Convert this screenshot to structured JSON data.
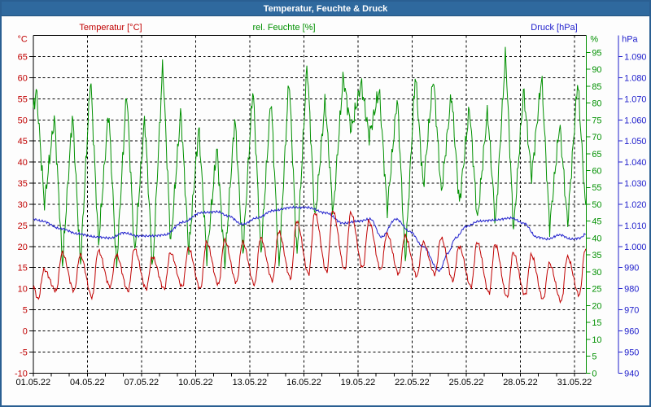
{
  "window_title": "Temperatur, Feuchte & Druck",
  "colors": {
    "titlebar_bg": "#2f699e",
    "frame_border": "#2a5f92",
    "temperature": "#c00000",
    "humidity": "#009000",
    "pressure": "#2020cc",
    "grid": "#000000",
    "axis_line": "#000000",
    "date_text": "#000000",
    "title_text": "#ffffff",
    "plot_bg": "#fdfdfd"
  },
  "chart_data": {
    "type": "line",
    "title": "Temperatur, Feuchte & Druck",
    "legend_position": "top",
    "grid": "dashed, horizontal every 5 °C, vertical every 3 days",
    "x_axis": {
      "tick_labels": [
        "01.05.22",
        "04.05.22",
        "07.05.22",
        "10.05.22",
        "13.05.22",
        "16.05.22",
        "19.05.22",
        "22.05.22",
        "25.05.22",
        "28.05.22",
        "31.05.22"
      ],
      "tick_days": [
        0,
        3,
        6,
        9,
        12,
        15,
        18,
        21,
        24,
        27,
        30
      ],
      "minor_tick_interval_days": 1,
      "range_days": [
        0,
        30.65
      ]
    },
    "axes": {
      "temperature": {
        "label": "Temperatur [°C]",
        "unit": "°C",
        "side": "left",
        "color": "#c00000",
        "range": [
          -10,
          70
        ],
        "ticks": [
          -10,
          -5,
          0,
          5,
          10,
          15,
          20,
          25,
          30,
          35,
          40,
          45,
          50,
          55,
          60,
          65
        ],
        "tick_labels": [
          "-10",
          "-5",
          "0",
          "5",
          "10",
          "15",
          "20",
          "25",
          "30",
          "35",
          "40",
          "45",
          "50",
          "55",
          "60",
          "65"
        ]
      },
      "humidity": {
        "label": "rel. Feuchte [%]",
        "unit": "%",
        "side": "right-inner",
        "color": "#009000",
        "range": [
          0,
          100
        ],
        "ticks": [
          0,
          5,
          10,
          15,
          20,
          25,
          30,
          35,
          40,
          45,
          50,
          55,
          60,
          65,
          70,
          75,
          80,
          85,
          90,
          95
        ],
        "tick_labels": [
          "0",
          "5",
          "10",
          "15",
          "20",
          "25",
          "30",
          "35",
          "40",
          "45",
          "50",
          "55",
          "60",
          "65",
          "70",
          "75",
          "80",
          "85",
          "90",
          "95"
        ]
      },
      "pressure": {
        "label": "Druck [hPa]",
        "unit": "hPa",
        "side": "right-outer",
        "color": "#2020cc",
        "range": [
          940,
          1100
        ],
        "ticks": [
          940,
          950,
          960,
          970,
          980,
          990,
          1000,
          1010,
          1020,
          1030,
          1040,
          1050,
          1060,
          1070,
          1080,
          1090
        ],
        "tick_labels": [
          "940",
          "950",
          "960",
          "970",
          "980",
          "990",
          "1.000",
          "1.010",
          "1.020",
          "1.030",
          "1.040",
          "1.050",
          "1.060",
          "1.070",
          "1.080",
          "1.090"
        ]
      }
    },
    "series": {
      "temperature_daily": [
        {
          "date": "01.05",
          "min": 7.5,
          "max": 14.5
        },
        {
          "date": "02.05",
          "min": 9.5,
          "max": 18.5
        },
        {
          "date": "03.05",
          "min": 9.5,
          "max": 18.0
        },
        {
          "date": "04.05",
          "min": 8.0,
          "max": 19.0
        },
        {
          "date": "05.05",
          "min": 10.5,
          "max": 18.0
        },
        {
          "date": "06.05",
          "min": 9.5,
          "max": 19.5
        },
        {
          "date": "07.05",
          "min": 10.0,
          "max": 17.5
        },
        {
          "date": "08.05",
          "min": 10.0,
          "max": 18.5
        },
        {
          "date": "09.05",
          "min": 10.5,
          "max": 19.5
        },
        {
          "date": "10.05",
          "min": 10.0,
          "max": 21.0
        },
        {
          "date": "11.05",
          "min": 11.0,
          "max": 21.5
        },
        {
          "date": "12.05",
          "min": 11.5,
          "max": 21.0
        },
        {
          "date": "13.05",
          "min": 11.0,
          "max": 22.0
        },
        {
          "date": "14.05",
          "min": 12.0,
          "max": 23.5
        },
        {
          "date": "15.05",
          "min": 12.5,
          "max": 26.0
        },
        {
          "date": "16.05",
          "min": 13.5,
          "max": 28.0
        },
        {
          "date": "17.05",
          "min": 14.0,
          "max": 28.5
        },
        {
          "date": "18.05",
          "min": 14.5,
          "max": 28.0
        },
        {
          "date": "19.05",
          "min": 15.0,
          "max": 26.0
        },
        {
          "date": "20.05",
          "min": 14.5,
          "max": 23.0
        },
        {
          "date": "21.05",
          "min": 13.5,
          "max": 22.5
        },
        {
          "date": "22.05",
          "min": 13.0,
          "max": 21.0
        },
        {
          "date": "23.05",
          "min": 13.5,
          "max": 22.0
        },
        {
          "date": "24.05",
          "min": 12.0,
          "max": 20.0
        },
        {
          "date": "25.05",
          "min": 10.5,
          "max": 21.0
        },
        {
          "date": "26.05",
          "min": 9.0,
          "max": 20.5
        },
        {
          "date": "27.05",
          "min": 8.0,
          "max": 18.5
        },
        {
          "date": "28.05",
          "min": 8.5,
          "max": 18.0
        },
        {
          "date": "29.05",
          "min": 7.5,
          "max": 16.0
        },
        {
          "date": "30.05",
          "min": 7.0,
          "max": 17.5
        },
        {
          "date": "31.05",
          "min": 8.5,
          "max": 19.5
        }
      ],
      "humidity_daily": [
        {
          "date": "01.05",
          "max": 84,
          "min": 50
        },
        {
          "date": "02.05",
          "max": 76,
          "min": 32
        },
        {
          "date": "03.05",
          "max": 77,
          "min": 32
        },
        {
          "date": "04.05",
          "max": 88,
          "min": 38
        },
        {
          "date": "05.05",
          "max": 78,
          "min": 31
        },
        {
          "date": "06.05",
          "max": 84,
          "min": 35
        },
        {
          "date": "07.05",
          "max": 76,
          "min": 30
        },
        {
          "date": "08.05",
          "max": 92,
          "min": 38
        },
        {
          "date": "09.05",
          "max": 78,
          "min": 36
        },
        {
          "date": "10.05",
          "max": 73,
          "min": 34
        },
        {
          "date": "11.05",
          "max": 67,
          "min": 32
        },
        {
          "date": "12.05",
          "max": 76,
          "min": 35
        },
        {
          "date": "13.05",
          "max": 85,
          "min": 35
        },
        {
          "date": "14.05",
          "max": 82,
          "min": 31
        },
        {
          "date": "15.05",
          "max": 88,
          "min": 34
        },
        {
          "date": "16.05",
          "max": 92,
          "min": 45
        },
        {
          "date": "17.05",
          "max": 81,
          "min": 47
        },
        {
          "date": "18.05",
          "max": 88,
          "min": 72
        },
        {
          "date": "19.05",
          "max": 86,
          "min": 70
        },
        {
          "date": "20.05",
          "max": 84,
          "min": 48
        },
        {
          "date": "21.05",
          "max": 82,
          "min": 33
        },
        {
          "date": "22.05",
          "max": 89,
          "min": 55
        },
        {
          "date": "23.05",
          "max": 88,
          "min": 53
        },
        {
          "date": "24.05",
          "max": 83,
          "min": 50
        },
        {
          "date": "25.05",
          "max": 79,
          "min": 45
        },
        {
          "date": "26.05",
          "max": 78,
          "min": 44
        },
        {
          "date": "27.05",
          "max": 95,
          "min": 42
        },
        {
          "date": "28.05",
          "max": 84,
          "min": 58
        },
        {
          "date": "29.05",
          "max": 88,
          "min": 43
        },
        {
          "date": "30.05",
          "max": 74,
          "min": 44
        },
        {
          "date": "31.05",
          "max": 87,
          "min": 48
        }
      ],
      "pressure_points": [
        [
          0,
          1013
        ],
        [
          0.5,
          1012
        ],
        [
          1.5,
          1008.5
        ],
        [
          2.5,
          1006
        ],
        [
          3.5,
          1004.5
        ],
        [
          4.3,
          1004
        ],
        [
          5.0,
          1006.5
        ],
        [
          5.8,
          1005
        ],
        [
          6.6,
          1005
        ],
        [
          7.3,
          1005.5
        ],
        [
          8.3,
          1011.5
        ],
        [
          9.3,
          1016
        ],
        [
          10.2,
          1016.5
        ],
        [
          10.8,
          1014.5
        ],
        [
          11.6,
          1010.5
        ],
        [
          12.4,
          1013.5
        ],
        [
          13.3,
          1017
        ],
        [
          14.3,
          1018.5
        ],
        [
          15.2,
          1018.5
        ],
        [
          16.2,
          1016
        ],
        [
          17.2,
          1011
        ],
        [
          18.0,
          1012
        ],
        [
          18.7,
          1013
        ],
        [
          19.3,
          1004.5
        ],
        [
          20.1,
          1013
        ],
        [
          20.9,
          1007
        ],
        [
          21.6,
          1000
        ],
        [
          22.5,
          988.5
        ],
        [
          23.0,
          997
        ],
        [
          23.4,
          1004
        ],
        [
          24.0,
          1009.5
        ],
        [
          24.7,
          1012
        ],
        [
          25.5,
          1012.5
        ],
        [
          26.5,
          1013.5
        ],
        [
          27.2,
          1011
        ],
        [
          27.9,
          1004.5
        ],
        [
          28.5,
          1003.5
        ],
        [
          29.2,
          1005.5
        ],
        [
          29.8,
          1003.5
        ],
        [
          30.3,
          1004
        ],
        [
          30.65,
          1006
        ]
      ]
    }
  }
}
